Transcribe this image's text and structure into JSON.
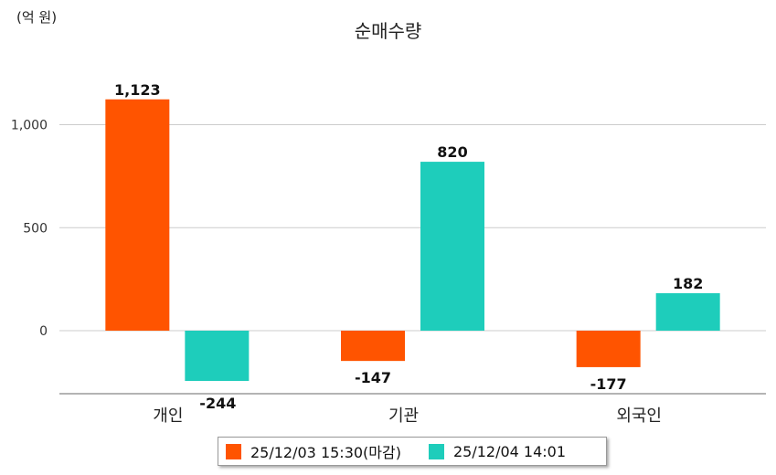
{
  "unit": "(억 원)",
  "chart_data": {
    "type": "bar",
    "title": "순매수량",
    "categories": [
      "개인",
      "기관",
      "외국인"
    ],
    "series": [
      {
        "name": "25/12/03 15:30(마감)",
        "color": "#ff5400",
        "values": [
          1123,
          -147,
          -177
        ]
      },
      {
        "name": "25/12/04 14:01",
        "color": "#1ecdbb",
        "values": [
          -244,
          820,
          182
        ]
      }
    ],
    "value_labels": [
      [
        "1,123",
        "-147",
        "-177"
      ],
      [
        "-244",
        "820",
        "182"
      ]
    ],
    "y_ticks": [
      0,
      500,
      1000
    ],
    "y_tick_labels": [
      "0",
      "500",
      "1,000"
    ],
    "ylim": [
      -300,
      1300
    ],
    "grid": true,
    "legend_position": "bottom"
  }
}
